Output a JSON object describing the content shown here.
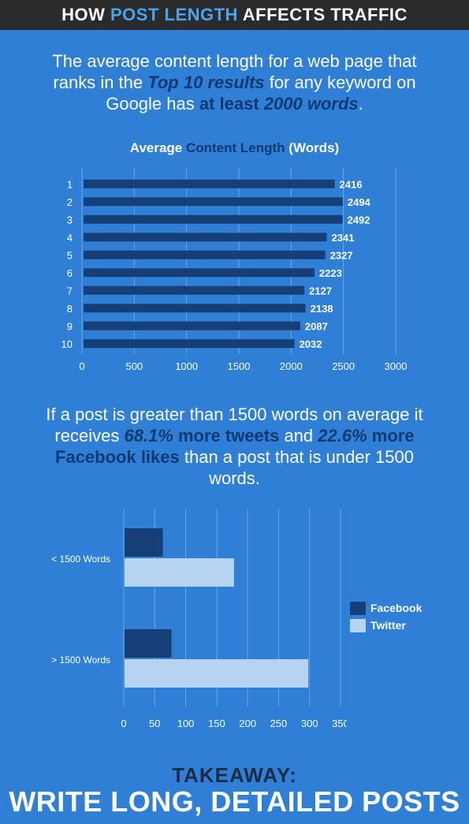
{
  "header": {
    "title_part1": "HOW ",
    "title_accent": "POST LENGTH",
    "title_part2": " AFFECTS TRAFFIC"
  },
  "intro": {
    "t1": "The average content length for a web page that ranks in the ",
    "em1": "Top 10 results",
    "t2": " for any keyword on Google has ",
    "strong1": "at least ",
    "em2": "2000 words",
    "t3": "."
  },
  "chart1_title": {
    "part1": "Average ",
    "part2": "Content Length",
    "part3": " (Words)"
  },
  "stat2": {
    "t1": "If a post is greater than 1500 words on average it receives ",
    "em1": "68.1%",
    "strong1": " more tweets",
    "t2": " and ",
    "em2": "22.6%",
    "strong2": " more Facebook likes",
    "t3": " than a post that is under 1500 words."
  },
  "takeaway": {
    "label": "TAKEAWAY:",
    "text": "WRITE LONG, DETAILED POSTS"
  },
  "colors": {
    "background": "#2f7fd6",
    "dark_bar": "#163f78",
    "light_bar": "#b6d4f1",
    "header_bg": "#2b2b2b",
    "accent": "#4aa3f0"
  },
  "chart_data": [
    {
      "type": "bar",
      "orientation": "horizontal",
      "title": "Average Content Length (Words)",
      "categories": [
        "1",
        "2",
        "3",
        "4",
        "5",
        "6",
        "7",
        "8",
        "9",
        "10"
      ],
      "values": [
        2416,
        2494,
        2492,
        2341,
        2327,
        2223,
        2127,
        2138,
        2087,
        2032
      ],
      "xlim": [
        0,
        3000
      ],
      "xticks": [
        "0",
        "500",
        "1000",
        "1500",
        "2000",
        "2500",
        "3000"
      ],
      "grid": true
    },
    {
      "type": "bar",
      "orientation": "horizontal",
      "categories": [
        "< 1500 Words",
        "> 1500 Words"
      ],
      "series": [
        {
          "name": "Facebook",
          "values": [
            63,
            77
          ]
        },
        {
          "name": "Twitter",
          "values": [
            178,
            298
          ]
        }
      ],
      "xlim": [
        0,
        350
      ],
      "xticks": [
        "0",
        "50",
        "100",
        "150",
        "200",
        "250",
        "300",
        "350"
      ],
      "legend": "right",
      "grid": true
    }
  ]
}
